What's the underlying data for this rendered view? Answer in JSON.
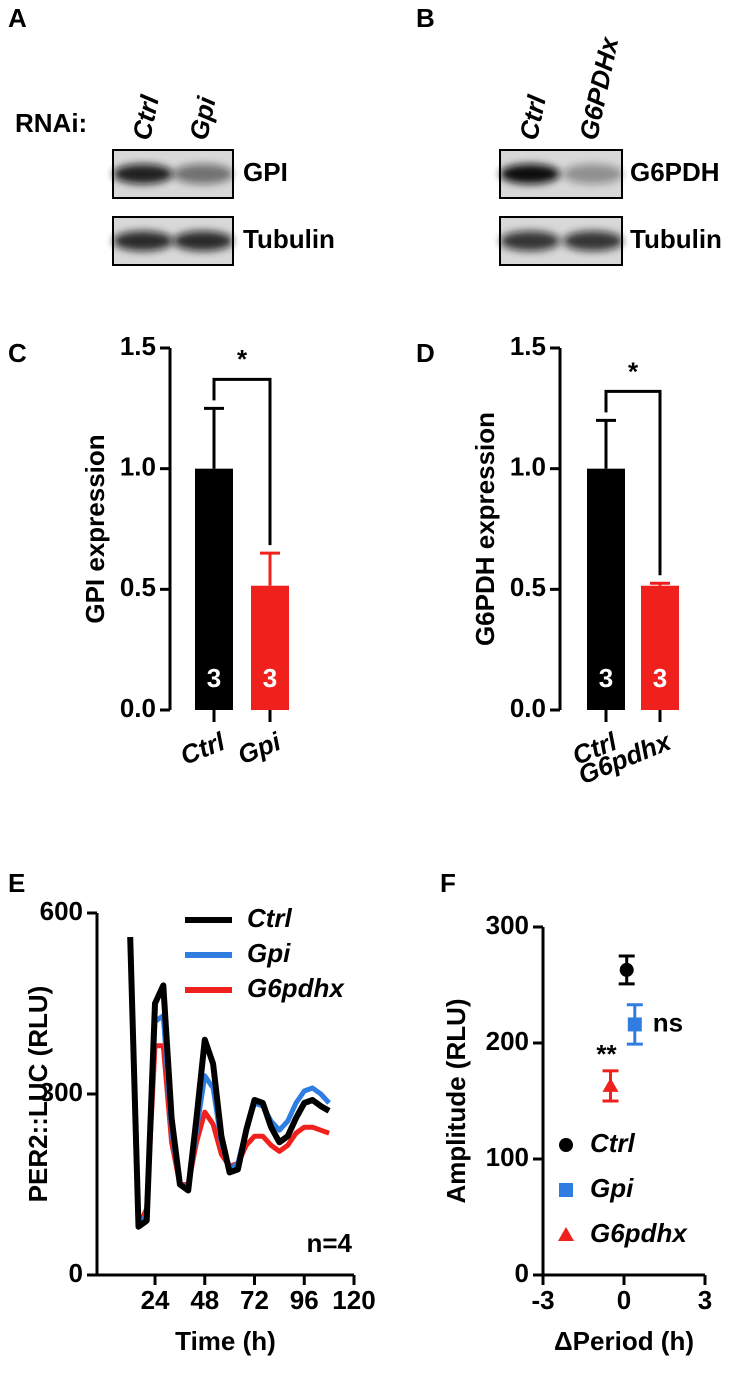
{
  "blots": [
    {
      "panel": "A",
      "prefix": "RNAi:",
      "lanes": [
        "Ctrl",
        "Gpi"
      ],
      "bands": [
        "GPI",
        "Tubulin"
      ]
    },
    {
      "panel": "B",
      "lanes": [
        "Ctrl",
        "G6PDHx"
      ],
      "bands": [
        "G6PDH",
        "Tubulin"
      ]
    }
  ],
  "chart_data": [
    {
      "panel": "C",
      "type": "bar",
      "y_label": "GPI expression",
      "categories": [
        "Ctrl",
        "Gpi"
      ],
      "values": [
        1.0,
        0.515
      ],
      "errors": [
        0.25,
        0.135
      ],
      "colors": [
        "#000000",
        "#f0211d"
      ],
      "n": [
        3,
        3
      ],
      "ylim": [
        0,
        1.5
      ],
      "yticks": [
        {
          "value": 0,
          "label": "0.0"
        },
        0.5,
        {
          "value": 1,
          "label": "1.0"
        },
        1.5
      ],
      "significance": "*"
    },
    {
      "panel": "D",
      "type": "bar",
      "y_label": "G6PDH expression",
      "categories": [
        "Ctrl",
        "G6pdhx"
      ],
      "values": [
        1.0,
        0.515
      ],
      "errors": [
        0.2,
        0.01
      ],
      "colors": [
        "#000000",
        "#f0211d"
      ],
      "n": [
        3,
        3
      ],
      "ylim": [
        0,
        1.5
      ],
      "yticks": [
        {
          "value": 0,
          "label": "0.0"
        },
        0.5,
        {
          "value": 1,
          "label": "1.0"
        },
        1.5
      ],
      "significance": "*"
    },
    {
      "panel": "E",
      "type": "line",
      "x_label": "Time (h)",
      "y_label": "PER2::LUC (RLU)",
      "annotation": "n=4",
      "x": [
        12,
        16,
        20,
        24,
        28,
        32,
        36,
        40,
        44,
        48,
        52,
        56,
        60,
        64,
        68,
        72,
        76,
        80,
        84,
        88,
        92,
        96,
        100,
        104,
        108
      ],
      "series": [
        {
          "name": "Ctrl",
          "color": "#000000",
          "values": [
            560,
            80,
            90,
            450,
            480,
            260,
            150,
            140,
            260,
            390,
            350,
            230,
            170,
            175,
            240,
            290,
            285,
            245,
            220,
            230,
            260,
            285,
            290,
            280,
            272
          ]
        },
        {
          "name": "Gpi",
          "color": "#2f7de1",
          "values": [
            560,
            80,
            100,
            420,
            430,
            240,
            150,
            145,
            240,
            330,
            310,
            220,
            175,
            185,
            240,
            285,
            280,
            255,
            240,
            255,
            285,
            305,
            310,
            300,
            285
          ]
        },
        {
          "name": "G6pdhx",
          "color": "#f0211d",
          "values": [
            560,
            80,
            110,
            380,
            380,
            220,
            150,
            150,
            220,
            270,
            250,
            200,
            180,
            185,
            215,
            230,
            230,
            215,
            205,
            215,
            235,
            245,
            245,
            240,
            235
          ]
        }
      ],
      "xlim": [
        -4,
        120
      ],
      "xticks": [
        24,
        48,
        72,
        96,
        120
      ],
      "ylim": [
        0,
        600
      ],
      "yticks": [
        0,
        300,
        600
      ]
    },
    {
      "panel": "F",
      "type": "scatter",
      "x_label": "ΔPeriod (h)",
      "y_label": "Amplitude (RLU)",
      "series": [
        {
          "name": "Ctrl",
          "color": "#000000",
          "marker": "circle",
          "x": [
            0.1
          ],
          "values": [
            263
          ],
          "errors": [
            12
          ]
        },
        {
          "name": "Gpi",
          "color": "#2f7de1",
          "marker": "square",
          "x": [
            0.4
          ],
          "values": [
            216
          ],
          "errors": [
            17
          ],
          "annotation": "ns"
        },
        {
          "name": "G6pdhx",
          "color": "#f0211d",
          "marker": "triangle",
          "x": [
            -0.5
          ],
          "values": [
            163
          ],
          "errors": [
            13
          ],
          "annotation": "**"
        }
      ],
      "xlim": [
        -3,
        3
      ],
      "xticks": [
        -3,
        0,
        3
      ],
      "ylim": [
        0,
        300
      ],
      "yticks": [
        0,
        100,
        200,
        300
      ]
    }
  ]
}
